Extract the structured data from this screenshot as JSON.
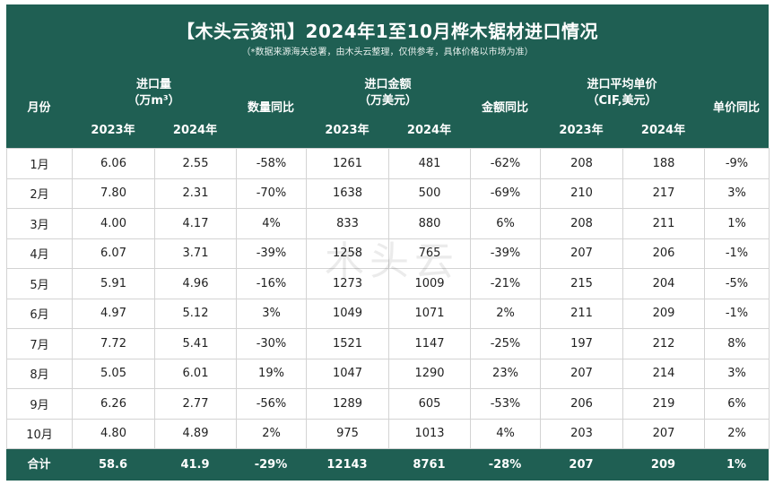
{
  "title": "【木头云资讯】2024年1至10月桦木锯材进口情况",
  "subtitle": "（*数据来源海关总署，由木头云整理，仅供参考，具体价格以市场为准）",
  "watermark": "木头云",
  "colors": {
    "header": "#1f5f53",
    "negative": "#2a6b5c",
    "positive": "#e0302a"
  },
  "headers": {
    "month": "月份",
    "volume": "进口量",
    "volume_unit": "（万m³）",
    "volume_yoy": "数量同比",
    "amount": "进口金额",
    "amount_unit": "（万美元）",
    "amount_yoy": "金额同比",
    "price": "进口平均单价",
    "price_unit": "（CIF,美元）",
    "price_yoy": "单价同比",
    "y2023": "2023年",
    "y2024": "2024年"
  },
  "rows": [
    {
      "month": "1月",
      "vol23": "6.06",
      "vol24": "2.55",
      "vol_yoy": "-58%",
      "amt23": "1261",
      "amt24": "481",
      "amt_yoy": "-62%",
      "price23": "208",
      "price24": "188",
      "price_yoy": "-9%"
    },
    {
      "month": "2月",
      "vol23": "7.80",
      "vol24": "2.31",
      "vol_yoy": "-70%",
      "amt23": "1638",
      "amt24": "500",
      "amt_yoy": "-69%",
      "price23": "210",
      "price24": "217",
      "price_yoy": "3%"
    },
    {
      "month": "3月",
      "vol23": "4.00",
      "vol24": "4.17",
      "vol_yoy": "4%",
      "amt23": "833",
      "amt24": "880",
      "amt_yoy": "6%",
      "price23": "208",
      "price24": "211",
      "price_yoy": "1%"
    },
    {
      "month": "4月",
      "vol23": "6.07",
      "vol24": "3.71",
      "vol_yoy": "-39%",
      "amt23": "1258",
      "amt24": "765",
      "amt_yoy": "-39%",
      "price23": "207",
      "price24": "206",
      "price_yoy": "-1%"
    },
    {
      "month": "5月",
      "vol23": "5.91",
      "vol24": "4.96",
      "vol_yoy": "-16%",
      "amt23": "1273",
      "amt24": "1009",
      "amt_yoy": "-21%",
      "price23": "215",
      "price24": "204",
      "price_yoy": "-5%"
    },
    {
      "month": "6月",
      "vol23": "4.97",
      "vol24": "5.12",
      "vol_yoy": "3%",
      "amt23": "1049",
      "amt24": "1071",
      "amt_yoy": "2%",
      "price23": "211",
      "price24": "209",
      "price_yoy": "-1%"
    },
    {
      "month": "7月",
      "vol23": "7.72",
      "vol24": "5.41",
      "vol_yoy": "-30%",
      "amt23": "1521",
      "amt24": "1147",
      "amt_yoy": "-25%",
      "price23": "197",
      "price24": "212",
      "price_yoy": "8%"
    },
    {
      "month": "8月",
      "vol23": "5.05",
      "vol24": "6.01",
      "vol_yoy": "19%",
      "amt23": "1047",
      "amt24": "1290",
      "amt_yoy": "23%",
      "price23": "207",
      "price24": "214",
      "price_yoy": "3%"
    },
    {
      "month": "9月",
      "vol23": "6.26",
      "vol24": "2.77",
      "vol_yoy": "-56%",
      "amt23": "1289",
      "amt24": "605",
      "amt_yoy": "-53%",
      "price23": "206",
      "price24": "219",
      "price_yoy": "6%"
    },
    {
      "month": "10月",
      "vol23": "4.80",
      "vol24": "4.89",
      "vol_yoy": "2%",
      "amt23": "975",
      "amt24": "1013",
      "amt_yoy": "4%",
      "price23": "203",
      "price24": "207",
      "price_yoy": "2%"
    }
  ],
  "total": {
    "month": "合计",
    "vol23": "58.6",
    "vol24": "41.9",
    "vol_yoy": "-29%",
    "amt23": "12143",
    "amt24": "8761",
    "amt_yoy": "-28%",
    "price23": "207",
    "price24": "209",
    "price_yoy": "1%"
  }
}
